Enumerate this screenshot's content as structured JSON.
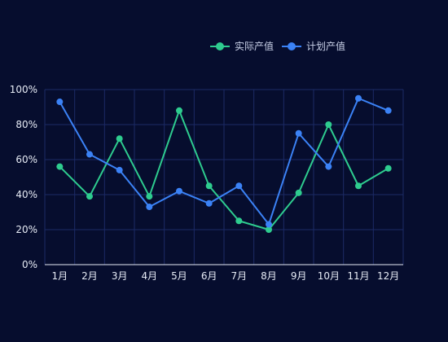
{
  "chart_data": {
    "type": "line",
    "categories": [
      "1月",
      "2月",
      "3月",
      "4月",
      "5月",
      "6月",
      "7月",
      "8月",
      "9月",
      "10月",
      "11月",
      "12月"
    ],
    "series": [
      {
        "name": "实际产值",
        "color": "#2ecc8f",
        "values": [
          56,
          39,
          72,
          39,
          88,
          45,
          25,
          20,
          41,
          80,
          45,
          55
        ]
      },
      {
        "name": "计划产值",
        "color": "#3b82f6",
        "values": [
          93,
          63,
          54,
          33,
          42,
          35,
          45,
          23,
          75,
          56,
          95,
          88
        ]
      }
    ],
    "ylim": [
      0,
      100
    ],
    "yticks": [
      0,
      20,
      40,
      60,
      80,
      100
    ],
    "ytick_labels": [
      "0%",
      "20%",
      "40%",
      "60%",
      "80%",
      "100%"
    ],
    "grid": true,
    "legend_position": "top-right",
    "colors": {
      "background": "#060d2e",
      "grid": "#1c2a66",
      "axis": "#e6ebf5"
    }
  }
}
